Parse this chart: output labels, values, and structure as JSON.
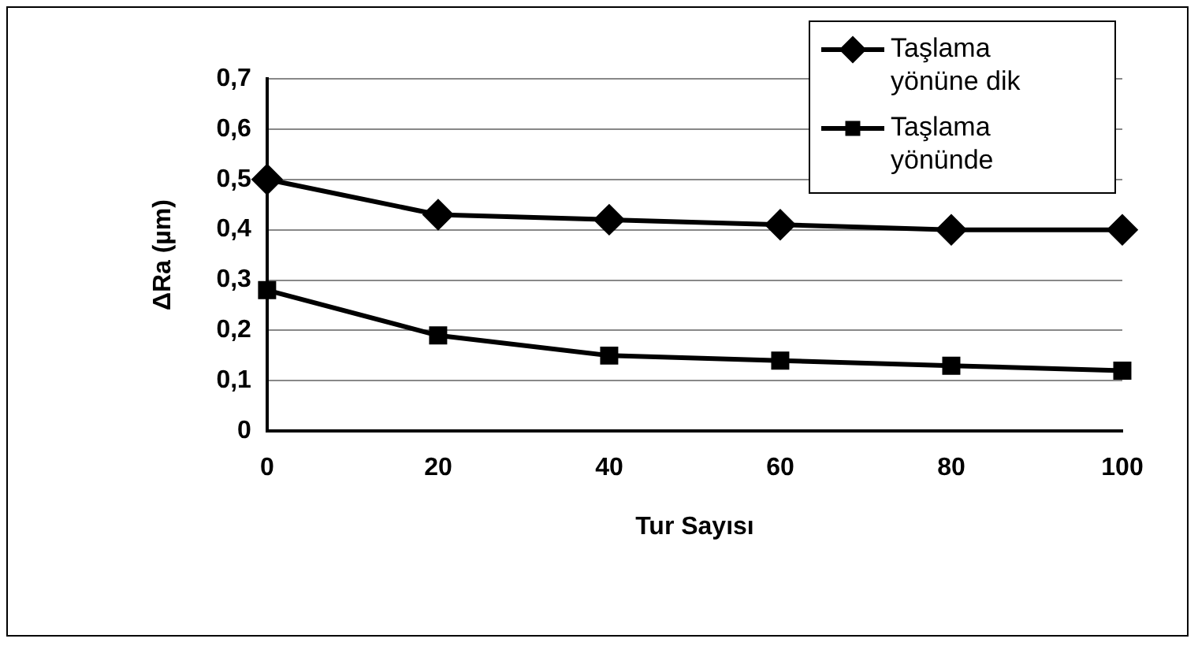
{
  "chart_data": {
    "type": "line",
    "xlabel": "Tur Sayısı",
    "ylabel": "ΔRa (µm)",
    "x": [
      0,
      20,
      40,
      60,
      80,
      100
    ],
    "series": [
      {
        "name": "Taşlama yönüne dik",
        "color": "#000000",
        "marker": "diamond",
        "values": [
          0.5,
          0.43,
          0.42,
          0.41,
          0.4,
          0.4
        ]
      },
      {
        "name": "Taşlama yönünde",
        "color": "#000000",
        "marker": "square",
        "values": [
          0.28,
          0.19,
          0.15,
          0.14,
          0.13,
          0.12
        ]
      }
    ],
    "xlim": [
      0,
      100
    ],
    "xticks": [
      0,
      20,
      40,
      60,
      80,
      100
    ],
    "ylim": [
      0,
      0.7
    ],
    "yticks": [
      0,
      {
        "value": 0.1,
        "label": "0,1"
      },
      {
        "value": 0.2,
        "label": "0,2"
      },
      {
        "value": 0.3,
        "label": "0,3"
      },
      {
        "value": 0.4,
        "label": "0,4"
      },
      {
        "value": 0.5,
        "label": "0,5"
      },
      {
        "value": 0.6,
        "label": "0,6"
      },
      {
        "value": 0.7,
        "label": "0,7"
      }
    ],
    "grid": "y",
    "legend": "top right",
    "line_style": "solid"
  }
}
